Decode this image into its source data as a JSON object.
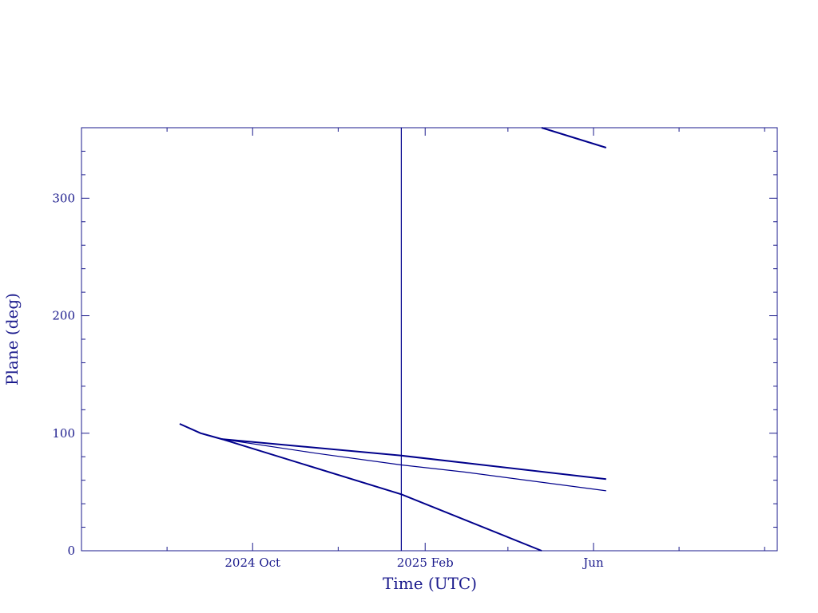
{
  "chart_data": {
    "type": "line",
    "title": "",
    "xlabel": "Time (UTC)",
    "ylabel": "Plane (deg)",
    "x_unit": "date",
    "xlim": [
      "2024-06-01",
      "2025-10-10"
    ],
    "ylim": [
      0,
      360
    ],
    "grid": false,
    "legend": "none",
    "x_tick_labels": [
      {
        "date": "2024-10-01",
        "label": "2024 Oct"
      },
      {
        "date": "2025-02-01",
        "label": "2025 Feb"
      },
      {
        "date": "2025-06-01",
        "label": "Jun"
      }
    ],
    "y_ticks": [
      0,
      100,
      200,
      300
    ],
    "y_tick_labels": [
      "0",
      "100",
      "200",
      "300"
    ],
    "reference_lines": [
      {
        "orientation": "vertical",
        "x": "2025-01-15"
      }
    ],
    "series": [
      {
        "style": "bold",
        "segments": [
          [
            {
              "x": "2024-08-10",
              "y": 108
            },
            {
              "x": "2024-08-25",
              "y": 100
            },
            {
              "x": "2024-09-09",
              "y": 95
            },
            {
              "x": "2025-01-15",
              "y": 48
            },
            {
              "x": "2025-04-25",
              "y": 0
            }
          ],
          [
            {
              "x": "2025-04-25",
              "y": 360
            },
            {
              "x": "2025-06-10",
              "y": 343
            }
          ]
        ]
      },
      {
        "style": "bold",
        "segments": [
          [
            {
              "x": "2024-09-09",
              "y": 95
            },
            {
              "x": "2025-01-15",
              "y": 81
            },
            {
              "x": "2025-06-10",
              "y": 61
            }
          ]
        ]
      },
      {
        "style": "thin",
        "segments": [
          [
            {
              "x": "2024-09-09",
              "y": 95
            },
            {
              "x": "2024-11-15",
              "y": 83
            },
            {
              "x": "2025-01-15",
              "y": 73
            },
            {
              "x": "2025-03-01",
              "y": 67
            },
            {
              "x": "2025-06-10",
              "y": 51
            }
          ]
        ]
      }
    ],
    "colors": {
      "axis": "#1a1a8c",
      "line": "#00008b"
    }
  }
}
